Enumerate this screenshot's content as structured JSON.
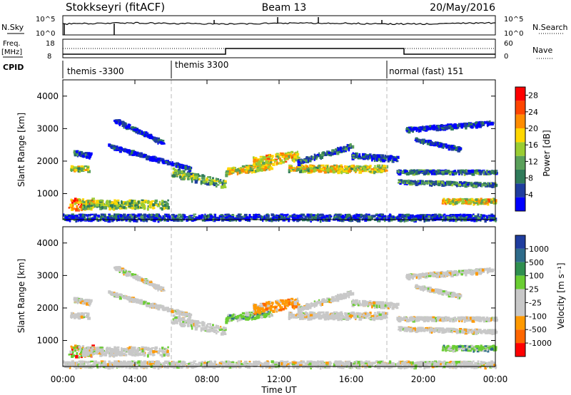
{
  "header": {
    "station": "Stokkseyri (fitACF)",
    "beam": "Beam 13",
    "date": "20/May/2016"
  },
  "noise_panel": {
    "left_label": "N.Sky",
    "right_label": "N.Search",
    "tick_top": "10^5",
    "tick_bottom": "10^0"
  },
  "freq_panel": {
    "left_label_1": "Freq.",
    "left_label_2": "[MHz]",
    "left_ticks": [
      "18",
      "8"
    ],
    "right_label": "Nave",
    "right_ticks": [
      "60",
      "0"
    ]
  },
  "cpid_panel": {
    "label": "CPID",
    "segments": [
      {
        "label": "themis -3300",
        "start_hour": 0
      },
      {
        "label": "themis 3300",
        "start_hour": 6
      },
      {
        "label": "normal (fast) 151",
        "start_hour": 18
      }
    ]
  },
  "colors": {
    "power_scale": [
      "#0000ff",
      "#1f3d9e",
      "#2f7a5a",
      "#5aa05a",
      "#9acd32",
      "#ffd700",
      "#ff8c00",
      "#ff4500",
      "#ff0000"
    ],
    "velocity_scale": [
      "#1f3d9e",
      "#2e6b8a",
      "#2f8f4f",
      "#6acd32",
      "#c8c8c8",
      "#c8c8c8",
      "#ff9900",
      "#ff6600",
      "#ff0000"
    ]
  },
  "chart_data": [
    {
      "type": "heatmap",
      "name": "power",
      "ylabel": "Slant Range [km]",
      "ylim": [
        200,
        4500
      ],
      "yticks": [
        "1000",
        "2000",
        "3000",
        "4000"
      ],
      "colorbar_label": "Power [dB]",
      "colorbar_ticks": [
        "4",
        "8",
        "12",
        "16",
        "20",
        "24",
        "28"
      ],
      "colorbar_range": [
        0,
        30
      ]
    },
    {
      "type": "heatmap",
      "name": "velocity",
      "ylabel": "Slant Range [km]",
      "ylim": [
        200,
        4500
      ],
      "yticks": [
        "1000",
        "2000",
        "3000",
        "4000"
      ],
      "colorbar_label": "Velocity [m s⁻¹]",
      "colorbar_ticks": [
        "1000",
        "500",
        "100",
        "25",
        "-25",
        "-100",
        "-500",
        "-1000"
      ]
    }
  ],
  "xaxis": {
    "label": "Time UT",
    "ticks": [
      "00:00",
      "04:00",
      "08:00",
      "12:00",
      "16:00",
      "20:00",
      "00:00"
    ],
    "xlim": [
      0,
      24
    ]
  }
}
